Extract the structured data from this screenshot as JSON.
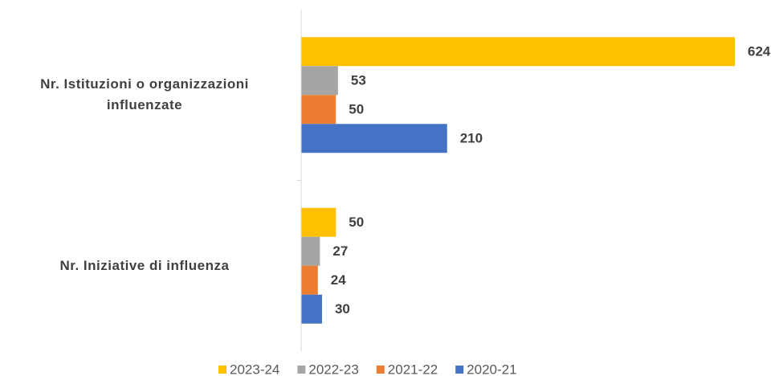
{
  "chart_data": {
    "type": "hbar",
    "categories": [
      "Nr. Istituzioni o organizzazioni influenzate",
      "Nr. Iniziative di influenza"
    ],
    "series": [
      {
        "name": "2023-24",
        "color": "#FFC000",
        "values": [
          624,
          50
        ]
      },
      {
        "name": "2022-23",
        "color": "#A5A5A5",
        "values": [
          53,
          27
        ]
      },
      {
        "name": "2021-22",
        "color": "#ED7D31",
        "values": [
          50,
          24
        ]
      },
      {
        "name": "2020-21",
        "color": "#4472C4",
        "values": [
          210,
          30
        ]
      }
    ]
  }
}
